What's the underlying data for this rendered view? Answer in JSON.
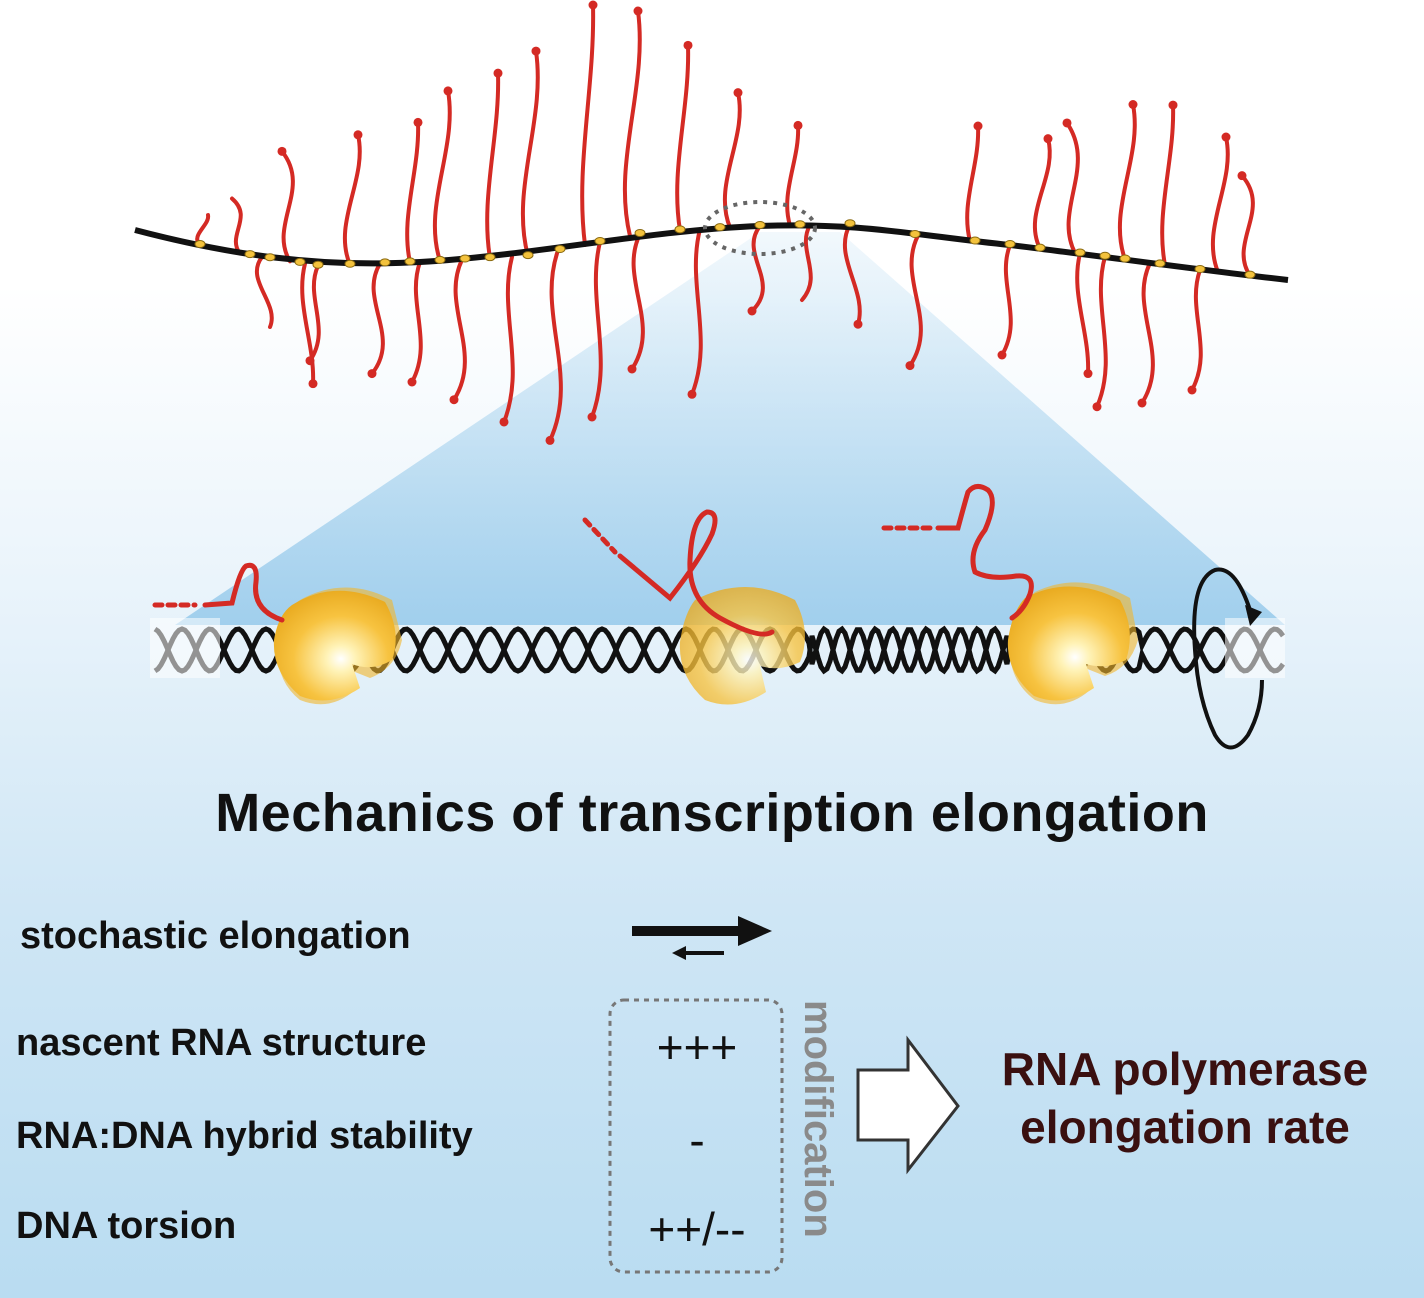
{
  "title": "Mechanics of transcription elongation",
  "factors": [
    {
      "label": "stochastic elongation",
      "effect": ""
    },
    {
      "label": "nascent RNA structure",
      "effect": "+++"
    },
    {
      "label": "RNA:DNA hybrid stability",
      "effect": "-"
    },
    {
      "label": "DNA torsion",
      "effect": "++/--"
    }
  ],
  "modification_label": "modification",
  "result": {
    "line1": "RNA polymerase",
    "line2": "elongation rate"
  },
  "colors": {
    "rna": "#d42a24",
    "dna": "#111111",
    "polymerase": "#f7c340",
    "highlight": "#ffeaa0",
    "text_dark_red": "#3a1010",
    "mod_grey": "#8a8a8a"
  },
  "icons": {
    "equilibrium": "equilibrium-arrows-icon",
    "outcome": "hollow-arrow-icon",
    "torsion": "rotation-arrow-icon"
  }
}
